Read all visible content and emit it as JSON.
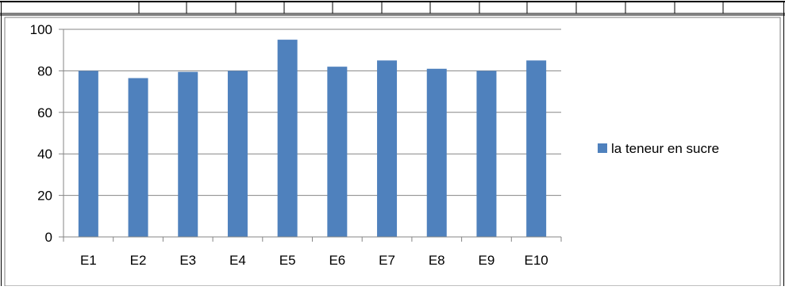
{
  "chart_data": {
    "type": "bar",
    "categories": [
      "E1",
      "E2",
      "E3",
      "E4",
      "E5",
      "E6",
      "E7",
      "E8",
      "E9",
      "E10"
    ],
    "series": [
      {
        "name": "la teneur en sucre",
        "values": [
          80,
          76.5,
          79.5,
          80,
          95,
          82,
          85,
          81,
          80,
          85
        ]
      }
    ],
    "ylim": [
      0,
      100
    ],
    "yticks": [
      0,
      20,
      40,
      60,
      80,
      100
    ],
    "grid": true,
    "legend_position": "right",
    "colors": {
      "bar": "#4F81BD",
      "grid": "#868686",
      "axis": "#868686"
    }
  }
}
